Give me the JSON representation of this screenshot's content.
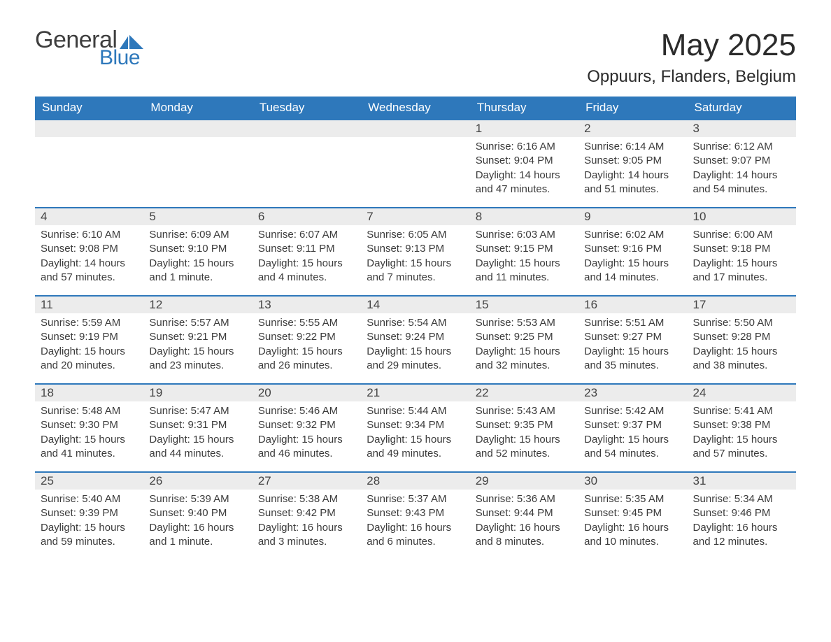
{
  "logo": {
    "text_general": "General",
    "text_blue": "Blue",
    "mark_color": "#2e78bb"
  },
  "title": "May 2025",
  "location": "Oppuurs, Flanders, Belgium",
  "colors": {
    "header_bg": "#2e78bb",
    "header_text": "#ffffff",
    "daynum_bg": "#ececec",
    "day_border_top": "#2e78bb",
    "body_text": "#3b3b3b",
    "page_bg": "#ffffff"
  },
  "fonts": {
    "title_size_pt": 33,
    "location_size_pt": 18,
    "header_cell_size_pt": 13,
    "daynum_size_pt": 13,
    "body_size_pt": 11
  },
  "day_headers": [
    "Sunday",
    "Monday",
    "Tuesday",
    "Wednesday",
    "Thursday",
    "Friday",
    "Saturday"
  ],
  "weeks": [
    [
      {
        "empty": true
      },
      {
        "empty": true
      },
      {
        "empty": true
      },
      {
        "empty": true
      },
      {
        "n": "1",
        "sunrise": "Sunrise: 6:16 AM",
        "sunset": "Sunset: 9:04 PM",
        "daylight": "Daylight: 14 hours and 47 minutes."
      },
      {
        "n": "2",
        "sunrise": "Sunrise: 6:14 AM",
        "sunset": "Sunset: 9:05 PM",
        "daylight": "Daylight: 14 hours and 51 minutes."
      },
      {
        "n": "3",
        "sunrise": "Sunrise: 6:12 AM",
        "sunset": "Sunset: 9:07 PM",
        "daylight": "Daylight: 14 hours and 54 minutes."
      }
    ],
    [
      {
        "n": "4",
        "sunrise": "Sunrise: 6:10 AM",
        "sunset": "Sunset: 9:08 PM",
        "daylight": "Daylight: 14 hours and 57 minutes."
      },
      {
        "n": "5",
        "sunrise": "Sunrise: 6:09 AM",
        "sunset": "Sunset: 9:10 PM",
        "daylight": "Daylight: 15 hours and 1 minute."
      },
      {
        "n": "6",
        "sunrise": "Sunrise: 6:07 AM",
        "sunset": "Sunset: 9:11 PM",
        "daylight": "Daylight: 15 hours and 4 minutes."
      },
      {
        "n": "7",
        "sunrise": "Sunrise: 6:05 AM",
        "sunset": "Sunset: 9:13 PM",
        "daylight": "Daylight: 15 hours and 7 minutes."
      },
      {
        "n": "8",
        "sunrise": "Sunrise: 6:03 AM",
        "sunset": "Sunset: 9:15 PM",
        "daylight": "Daylight: 15 hours and 11 minutes."
      },
      {
        "n": "9",
        "sunrise": "Sunrise: 6:02 AM",
        "sunset": "Sunset: 9:16 PM",
        "daylight": "Daylight: 15 hours and 14 minutes."
      },
      {
        "n": "10",
        "sunrise": "Sunrise: 6:00 AM",
        "sunset": "Sunset: 9:18 PM",
        "daylight": "Daylight: 15 hours and 17 minutes."
      }
    ],
    [
      {
        "n": "11",
        "sunrise": "Sunrise: 5:59 AM",
        "sunset": "Sunset: 9:19 PM",
        "daylight": "Daylight: 15 hours and 20 minutes."
      },
      {
        "n": "12",
        "sunrise": "Sunrise: 5:57 AM",
        "sunset": "Sunset: 9:21 PM",
        "daylight": "Daylight: 15 hours and 23 minutes."
      },
      {
        "n": "13",
        "sunrise": "Sunrise: 5:55 AM",
        "sunset": "Sunset: 9:22 PM",
        "daylight": "Daylight: 15 hours and 26 minutes."
      },
      {
        "n": "14",
        "sunrise": "Sunrise: 5:54 AM",
        "sunset": "Sunset: 9:24 PM",
        "daylight": "Daylight: 15 hours and 29 minutes."
      },
      {
        "n": "15",
        "sunrise": "Sunrise: 5:53 AM",
        "sunset": "Sunset: 9:25 PM",
        "daylight": "Daylight: 15 hours and 32 minutes."
      },
      {
        "n": "16",
        "sunrise": "Sunrise: 5:51 AM",
        "sunset": "Sunset: 9:27 PM",
        "daylight": "Daylight: 15 hours and 35 minutes."
      },
      {
        "n": "17",
        "sunrise": "Sunrise: 5:50 AM",
        "sunset": "Sunset: 9:28 PM",
        "daylight": "Daylight: 15 hours and 38 minutes."
      }
    ],
    [
      {
        "n": "18",
        "sunrise": "Sunrise: 5:48 AM",
        "sunset": "Sunset: 9:30 PM",
        "daylight": "Daylight: 15 hours and 41 minutes."
      },
      {
        "n": "19",
        "sunrise": "Sunrise: 5:47 AM",
        "sunset": "Sunset: 9:31 PM",
        "daylight": "Daylight: 15 hours and 44 minutes."
      },
      {
        "n": "20",
        "sunrise": "Sunrise: 5:46 AM",
        "sunset": "Sunset: 9:32 PM",
        "daylight": "Daylight: 15 hours and 46 minutes."
      },
      {
        "n": "21",
        "sunrise": "Sunrise: 5:44 AM",
        "sunset": "Sunset: 9:34 PM",
        "daylight": "Daylight: 15 hours and 49 minutes."
      },
      {
        "n": "22",
        "sunrise": "Sunrise: 5:43 AM",
        "sunset": "Sunset: 9:35 PM",
        "daylight": "Daylight: 15 hours and 52 minutes."
      },
      {
        "n": "23",
        "sunrise": "Sunrise: 5:42 AM",
        "sunset": "Sunset: 9:37 PM",
        "daylight": "Daylight: 15 hours and 54 minutes."
      },
      {
        "n": "24",
        "sunrise": "Sunrise: 5:41 AM",
        "sunset": "Sunset: 9:38 PM",
        "daylight": "Daylight: 15 hours and 57 minutes."
      }
    ],
    [
      {
        "n": "25",
        "sunrise": "Sunrise: 5:40 AM",
        "sunset": "Sunset: 9:39 PM",
        "daylight": "Daylight: 15 hours and 59 minutes."
      },
      {
        "n": "26",
        "sunrise": "Sunrise: 5:39 AM",
        "sunset": "Sunset: 9:40 PM",
        "daylight": "Daylight: 16 hours and 1 minute."
      },
      {
        "n": "27",
        "sunrise": "Sunrise: 5:38 AM",
        "sunset": "Sunset: 9:42 PM",
        "daylight": "Daylight: 16 hours and 3 minutes."
      },
      {
        "n": "28",
        "sunrise": "Sunrise: 5:37 AM",
        "sunset": "Sunset: 9:43 PM",
        "daylight": "Daylight: 16 hours and 6 minutes."
      },
      {
        "n": "29",
        "sunrise": "Sunrise: 5:36 AM",
        "sunset": "Sunset: 9:44 PM",
        "daylight": "Daylight: 16 hours and 8 minutes."
      },
      {
        "n": "30",
        "sunrise": "Sunrise: 5:35 AM",
        "sunset": "Sunset: 9:45 PM",
        "daylight": "Daylight: 16 hours and 10 minutes."
      },
      {
        "n": "31",
        "sunrise": "Sunrise: 5:34 AM",
        "sunset": "Sunset: 9:46 PM",
        "daylight": "Daylight: 16 hours and 12 minutes."
      }
    ]
  ]
}
